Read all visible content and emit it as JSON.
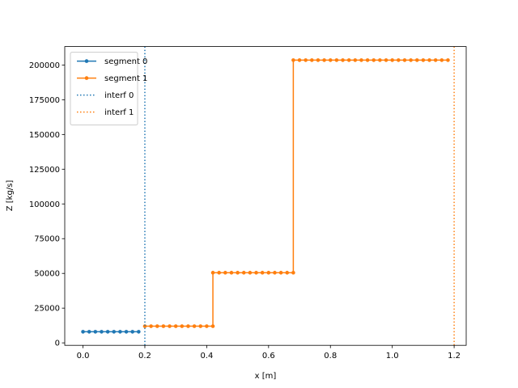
{
  "chart_data": {
    "type": "line",
    "xlabel": "x [m]",
    "ylabel": "Z [kg/s]",
    "xlim": [
      -0.059,
      1.239
    ],
    "xticks": [
      {
        "value": 0,
        "label": "0.0"
      },
      0.2,
      0.4,
      0.6,
      0.8,
      {
        "value": 1,
        "label": "1.0"
      },
      1.2
    ],
    "ylim": [
      -1775,
      213275
    ],
    "yticks": [
      0,
      25000,
      50000,
      75000,
      100000,
      125000,
      150000,
      175000,
      200000
    ],
    "legend": "upper left",
    "series": [
      {
        "name": "segment 0",
        "color": "#1f77b4",
        "x": [
          0,
          0.02,
          0.04,
          0.06,
          0.08,
          0.1,
          0.12,
          0.14,
          0.16,
          0.18
        ],
        "values": [
          8000,
          8000,
          8000,
          8000,
          8000,
          8000,
          8000,
          8000,
          8000,
          8000
        ]
      },
      {
        "name": "segment 1",
        "color": "#ff7f0e",
        "x": [
          0.2,
          0.22,
          0.24,
          0.26,
          0.28,
          0.3,
          0.32,
          0.34,
          0.36,
          0.38,
          0.4,
          0.42,
          0.42,
          0.44,
          0.46,
          0.48,
          0.5,
          0.52,
          0.54,
          0.56,
          0.58,
          0.6,
          0.62,
          0.64,
          0.66,
          0.68,
          0.68,
          0.7,
          0.72,
          0.74,
          0.76,
          0.78,
          0.8,
          0.82,
          0.84,
          0.86,
          0.88,
          0.9,
          0.92,
          0.94,
          0.96,
          0.98,
          1.0,
          1.02,
          1.04,
          1.06,
          1.08,
          1.1,
          1.12,
          1.14,
          1.16,
          1.18
        ],
        "values": [
          12000,
          12000,
          12000,
          12000,
          12000,
          12000,
          12000,
          12000,
          12000,
          12000,
          12000,
          12000,
          50500,
          50500,
          50500,
          50500,
          50500,
          50500,
          50500,
          50500,
          50500,
          50500,
          50500,
          50500,
          50500,
          50500,
          203500,
          203500,
          203500,
          203500,
          203500,
          203500,
          203500,
          203500,
          203500,
          203500,
          203500,
          203500,
          203500,
          203500,
          203500,
          203500,
          203500,
          203500,
          203500,
          203500,
          203500,
          203500,
          203500,
          203500,
          203500,
          203500
        ]
      }
    ],
    "vlines": [
      {
        "name": "interf 0",
        "color": "#1f77b4",
        "x": 0.2
      },
      {
        "name": "interf 1",
        "color": "#ff7f0e",
        "x": 1.2
      }
    ]
  }
}
